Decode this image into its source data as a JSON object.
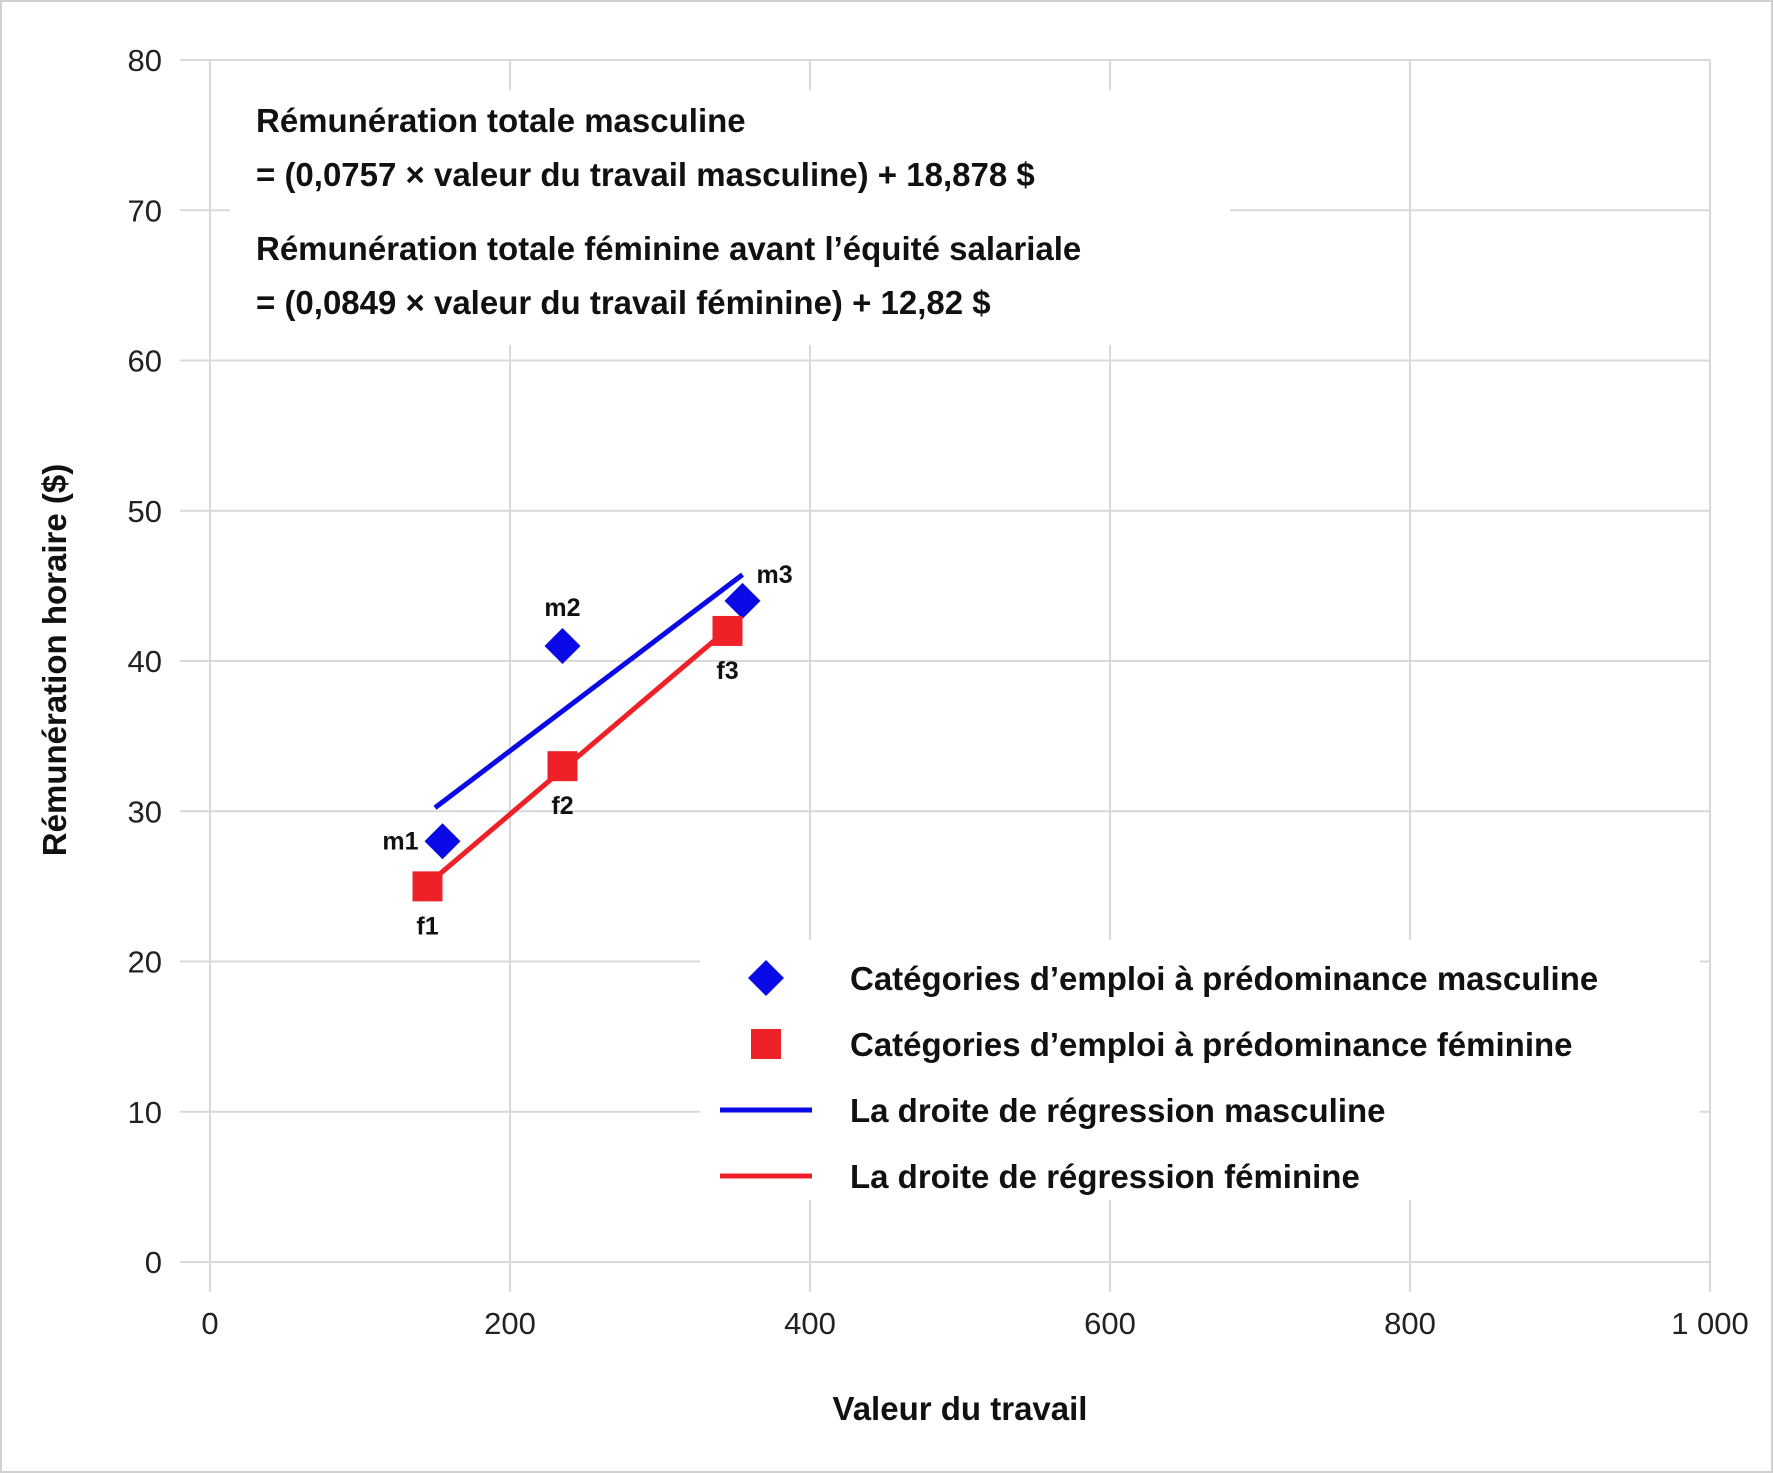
{
  "chart_data": {
    "type": "scatter",
    "xlabel": "Valeur du travail",
    "ylabel": "Rémunération horaire ($)",
    "xlim": [
      0,
      1000
    ],
    "ylim": [
      0,
      80
    ],
    "x_ticks": [
      0,
      200,
      400,
      600,
      800,
      1000
    ],
    "x_tick_labels": [
      "0",
      "200",
      "400",
      "600",
      "800",
      "1 000"
    ],
    "y_ticks": [
      0,
      10,
      20,
      30,
      40,
      50,
      60,
      70,
      80
    ],
    "y_tick_labels": [
      "0",
      "10",
      "20",
      "30",
      "40",
      "50",
      "60",
      "70",
      "80"
    ],
    "grid": true,
    "legend_position": "bottom-right",
    "annotations": [
      "Rémunération totale masculine",
      "= (0,0757 × valeur du travail masculine) + 18,878 $",
      "Rémunération totale féminine avant l’équité salariale",
      "= (0,0849 × valeur du travail féminine) + 12,82 $"
    ],
    "series": [
      {
        "name": "Catégories d’emploi à prédominance masculine",
        "marker": "diamond",
        "color": "#0a0ae6",
        "points": [
          {
            "label": "m1",
            "x": 155,
            "y": 28
          },
          {
            "label": "m2",
            "x": 235,
            "y": 41
          },
          {
            "label": "m3",
            "x": 355,
            "y": 44
          }
        ]
      },
      {
        "name": "Catégories d’emploi à prédominance féminine",
        "marker": "square",
        "color": "#ee2128",
        "points": [
          {
            "label": "f1",
            "x": 145,
            "y": 25
          },
          {
            "label": "f2",
            "x": 235,
            "y": 33
          },
          {
            "label": "f3",
            "x": 345,
            "y": 42
          }
        ]
      },
      {
        "name": "La droite de régression masculine",
        "type": "line",
        "color": "#0a0ae6",
        "slope": 0.0757,
        "intercept": 18.878,
        "x_range": [
          150,
          355
        ]
      },
      {
        "name": "La droite de régression féminine",
        "type": "line",
        "color": "#ee2128",
        "slope": 0.0849,
        "intercept": 12.82,
        "x_range": [
          145,
          345
        ]
      }
    ]
  }
}
